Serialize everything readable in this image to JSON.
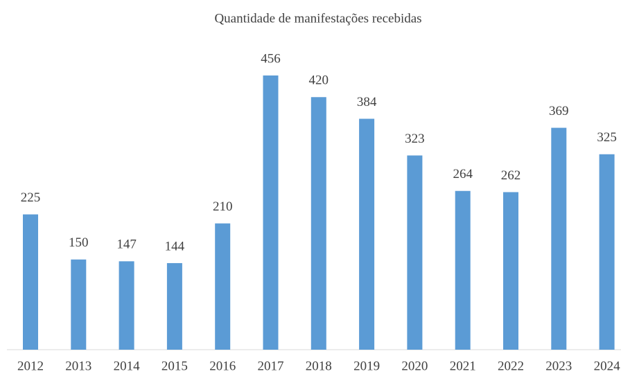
{
  "chart_data": {
    "type": "bar",
    "title": "Quantidade de manifestações recebidas",
    "categories": [
      "2012",
      "2013",
      "2014",
      "2015",
      "2016",
      "2017",
      "2018",
      "2019",
      "2020",
      "2021",
      "2022",
      "2023",
      "2024"
    ],
    "values": [
      225,
      150,
      147,
      144,
      210,
      456,
      420,
      384,
      323,
      264,
      262,
      369,
      325
    ],
    "color": "#5b9bd5"
  }
}
